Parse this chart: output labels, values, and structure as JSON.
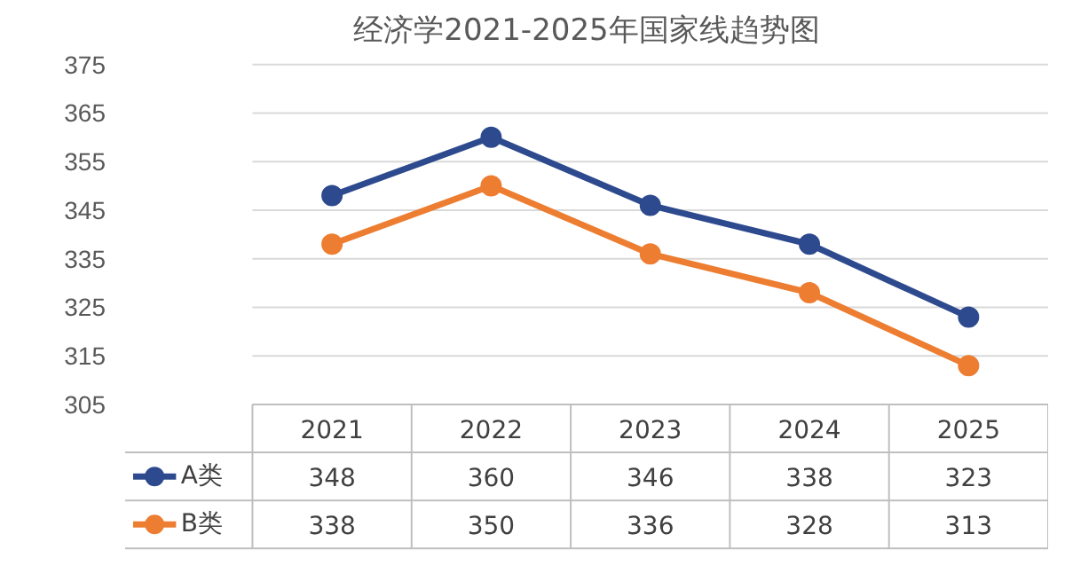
{
  "chart_data": {
    "type": "line",
    "title": "经济学2021-2025年国家线趋势图",
    "categories": [
      "2021",
      "2022",
      "2023",
      "2024",
      "2025"
    ],
    "series": [
      {
        "name": "A类",
        "color": "#2e4a8e",
        "values": [
          348,
          360,
          346,
          338,
          323
        ]
      },
      {
        "name": "B类",
        "color": "#ed7d31",
        "values": [
          338,
          350,
          336,
          328,
          313
        ]
      }
    ],
    "ylim": [
      305,
      375
    ],
    "yticks": [
      305,
      315,
      325,
      335,
      345,
      355,
      365,
      375
    ],
    "grid": "y",
    "legend": "bottom",
    "marker": "circle",
    "line_style": "solid",
    "data_labels": true
  }
}
